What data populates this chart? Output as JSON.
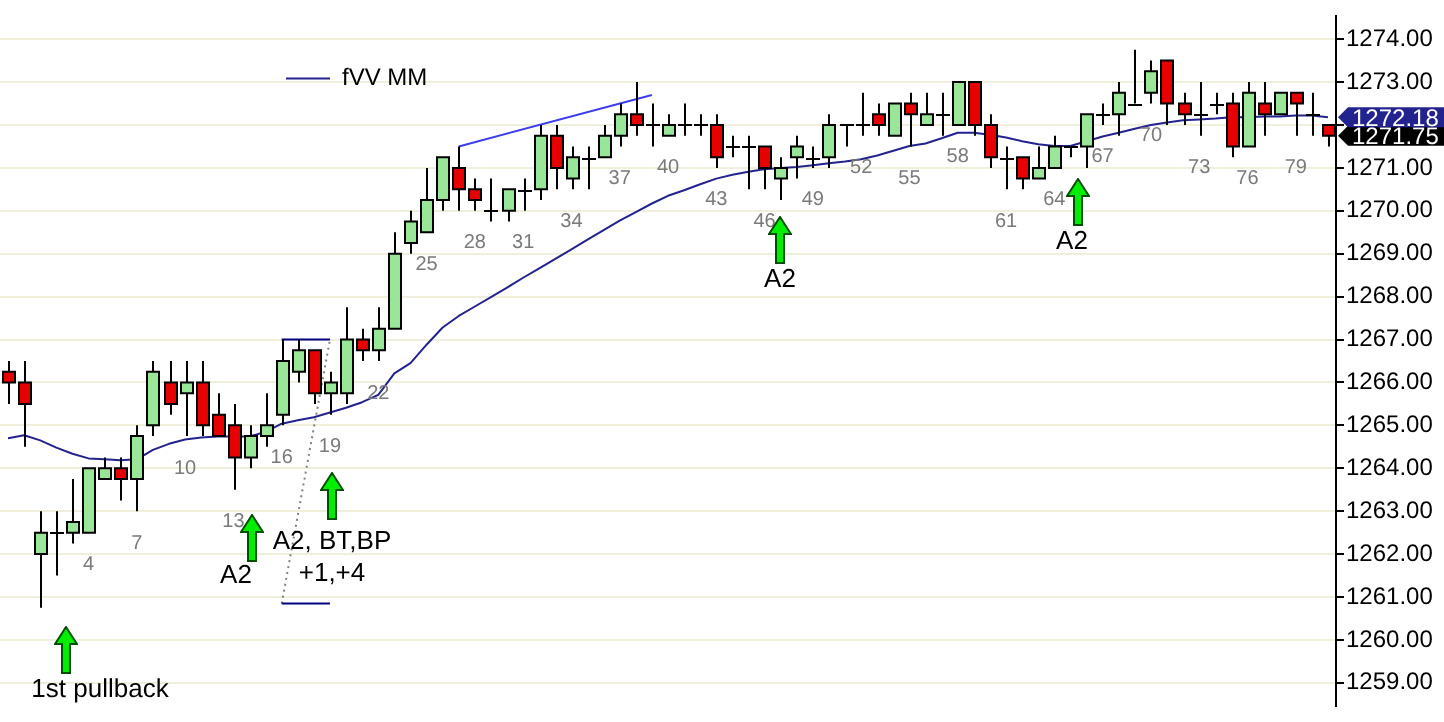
{
  "chart_data": {
    "type": "candlestick",
    "categories": [
      null,
      null,
      null,
      null,
      null,
      "4",
      null,
      null,
      "7",
      null,
      null,
      "10",
      null,
      null,
      "13",
      null,
      null,
      "16",
      null,
      null,
      "19",
      null,
      null,
      "22",
      null,
      null,
      "25",
      null,
      null,
      "28",
      null,
      null,
      "31",
      null,
      null,
      "34",
      null,
      null,
      "37",
      null,
      null,
      "40",
      null,
      null,
      "43",
      null,
      null,
      "46",
      null,
      null,
      "49",
      null,
      null,
      "52",
      null,
      null,
      "55",
      null,
      null,
      "58",
      null,
      null,
      "61",
      null,
      null,
      "64",
      null,
      null,
      "67",
      null,
      null,
      "70",
      null,
      null,
      "73",
      null,
      null,
      "76",
      null,
      null,
      "79",
      null,
      null
    ],
    "ohlc": [
      [
        1266.25,
        1266.5,
        1265.5,
        1266.0
      ],
      [
        1266.0,
        1266.5,
        1264.5,
        1265.5
      ],
      [
        1262.0,
        1263.0,
        1260.75,
        1262.5
      ],
      [
        1262.5,
        1263.0,
        1261.5,
        1262.5
      ],
      [
        1262.5,
        1263.75,
        1262.25,
        1262.75
      ],
      [
        1262.5,
        1264.0,
        1262.5,
        1264.0
      ],
      [
        1263.75,
        1264.25,
        1263.75,
        1264.0
      ],
      [
        1264.0,
        1264.25,
        1263.25,
        1263.75
      ],
      [
        1263.75,
        1265.0,
        1263.0,
        1264.75
      ],
      [
        1265.0,
        1266.5,
        1264.75,
        1266.25
      ],
      [
        1266.0,
        1266.5,
        1265.25,
        1265.5
      ],
      [
        1265.75,
        1266.5,
        1264.75,
        1266.0
      ],
      [
        1266.0,
        1266.5,
        1264.75,
        1265.0
      ],
      [
        1265.25,
        1265.75,
        1264.75,
        1264.75
      ],
      [
        1265.0,
        1265.5,
        1263.5,
        1264.25
      ],
      [
        1264.25,
        1265.0,
        1264.0,
        1264.75
      ],
      [
        1264.75,
        1265.75,
        1264.5,
        1265.0
      ],
      [
        1265.25,
        1267.0,
        1265.0,
        1266.5
      ],
      [
        1266.25,
        1267.0,
        1266.0,
        1266.75
      ],
      [
        1266.75,
        1266.75,
        1265.5,
        1265.75
      ],
      [
        1265.75,
        1266.25,
        1265.25,
        1266.0
      ],
      [
        1265.75,
        1267.75,
        1265.5,
        1267.0
      ],
      [
        1267.0,
        1267.25,
        1266.5,
        1266.75
      ],
      [
        1266.75,
        1267.75,
        1266.5,
        1267.25
      ],
      [
        1267.25,
        1269.5,
        1267.25,
        1269.0
      ],
      [
        1269.25,
        1270.0,
        1269.0,
        1269.75
      ],
      [
        1269.5,
        1271.0,
        1269.5,
        1270.25
      ],
      [
        1270.25,
        1271.25,
        1270.0,
        1271.25
      ],
      [
        1271.0,
        1271.5,
        1270.0,
        1270.5
      ],
      [
        1270.5,
        1270.75,
        1270.0,
        1270.25
      ],
      [
        1270.0,
        1270.75,
        1269.75,
        1270.0
      ],
      [
        1270.0,
        1270.5,
        1269.75,
        1270.5
      ],
      [
        1270.5,
        1270.75,
        1270.0,
        1270.5
      ],
      [
        1270.5,
        1272.0,
        1270.25,
        1271.75
      ],
      [
        1271.75,
        1272.0,
        1270.5,
        1271.0
      ],
      [
        1270.75,
        1271.5,
        1270.5,
        1271.25
      ],
      [
        1271.25,
        1271.5,
        1270.5,
        1271.25
      ],
      [
        1271.25,
        1272.0,
        1271.25,
        1271.75
      ],
      [
        1271.75,
        1272.5,
        1271.5,
        1272.25
      ],
      [
        1272.25,
        1273.0,
        1271.75,
        1272.0
      ],
      [
        1272.0,
        1272.5,
        1271.5,
        1272.0
      ],
      [
        1271.75,
        1272.25,
        1271.75,
        1272.0
      ],
      [
        1272.0,
        1272.5,
        1271.75,
        1272.0
      ],
      [
        1272.0,
        1272.25,
        1271.75,
        1272.0
      ],
      [
        1272.0,
        1272.25,
        1271.0,
        1271.25
      ],
      [
        1271.5,
        1271.75,
        1271.25,
        1271.5
      ],
      [
        1271.5,
        1271.75,
        1270.5,
        1271.5
      ],
      [
        1271.5,
        1271.5,
        1270.5,
        1271.0
      ],
      [
        1270.75,
        1271.25,
        1270.25,
        1271.0
      ],
      [
        1271.25,
        1271.75,
        1270.75,
        1271.5
      ],
      [
        1271.25,
        1271.5,
        1271.0,
        1271.25
      ],
      [
        1271.25,
        1272.25,
        1271.0,
        1272.0
      ],
      [
        1272.0,
        1272.0,
        1271.5,
        1272.0
      ],
      [
        1272.0,
        1272.75,
        1271.75,
        1272.0
      ],
      [
        1272.25,
        1272.5,
        1271.75,
        1272.0
      ],
      [
        1271.75,
        1272.5,
        1271.75,
        1272.5
      ],
      [
        1272.5,
        1272.75,
        1271.5,
        1272.25
      ],
      [
        1272.0,
        1272.75,
        1272.0,
        1272.25
      ],
      [
        1272.25,
        1272.75,
        1271.75,
        1272.25
      ],
      [
        1272.0,
        1273.0,
        1272.0,
        1273.0
      ],
      [
        1273.0,
        1273.0,
        1271.75,
        1272.0
      ],
      [
        1272.0,
        1272.25,
        1271.0,
        1271.25
      ],
      [
        1271.25,
        1271.5,
        1270.5,
        1271.25
      ],
      [
        1271.25,
        1271.25,
        1270.5,
        1270.75
      ],
      [
        1270.75,
        1271.5,
        1270.75,
        1271.0
      ],
      [
        1271.0,
        1271.75,
        1271.0,
        1271.5
      ],
      [
        1271.5,
        1271.5,
        1271.25,
        1271.5
      ],
      [
        1271.5,
        1272.25,
        1271.0,
        1272.25
      ],
      [
        1272.25,
        1272.5,
        1272.0,
        1272.25
      ],
      [
        1272.25,
        1273.0,
        1271.75,
        1272.75
      ],
      [
        1272.5,
        1273.75,
        1272.5,
        1272.5
      ],
      [
        1272.75,
        1273.5,
        1272.5,
        1273.25
      ],
      [
        1273.5,
        1273.5,
        1272.0,
        1272.5
      ],
      [
        1272.5,
        1272.75,
        1272.0,
        1272.25
      ],
      [
        1272.25,
        1273.0,
        1271.75,
        1272.25
      ],
      [
        1272.5,
        1272.75,
        1272.25,
        1272.5
      ],
      [
        1272.5,
        1272.75,
        1271.25,
        1271.5
      ],
      [
        1271.5,
        1273.0,
        1271.5,
        1272.75
      ],
      [
        1272.5,
        1273.0,
        1271.75,
        1272.25
      ],
      [
        1272.25,
        1272.75,
        1272.25,
        1272.75
      ],
      [
        1272.75,
        1272.75,
        1271.75,
        1272.5
      ],
      [
        1272.25,
        1272.75,
        1271.75,
        1272.25
      ],
      [
        1272.0,
        1272.0,
        1271.5,
        1271.75
      ]
    ],
    "colors": [
      "#e60000",
      "#e60000",
      "#99e699",
      "#000000",
      "#99e699",
      "#99e699",
      "#99e699",
      "#e60000",
      "#99e699",
      "#99e699",
      "#e60000",
      "#99e699",
      "#e60000",
      "#e60000",
      "#e60000",
      "#99e699",
      "#99e699",
      "#99e699",
      "#99e699",
      "#e60000",
      "#99e699",
      "#99e699",
      "#e60000",
      "#99e699",
      "#99e699",
      "#99e699",
      "#99e699",
      "#99e699",
      "#e60000",
      "#e60000",
      "#000000",
      "#99e699",
      "#000000",
      "#99e699",
      "#e60000",
      "#99e699",
      "#000000",
      "#99e699",
      "#99e699",
      "#e60000",
      "#000000",
      "#99e699",
      "#000000",
      "#000000",
      "#e60000",
      "#000000",
      "#000000",
      "#e60000",
      "#99e699",
      "#99e699",
      "#000000",
      "#99e699",
      "#000000",
      "#000000",
      "#e60000",
      "#99e699",
      "#e60000",
      "#99e699",
      "#000000",
      "#99e699",
      "#e60000",
      "#e60000",
      "#000000",
      "#e60000",
      "#99e699",
      "#99e699",
      "#000000",
      "#99e699",
      "#000000",
      "#99e699",
      "#000000",
      "#99e699",
      "#e60000",
      "#e60000",
      "#000000",
      "#000000",
      "#e60000",
      "#99e699",
      "#e60000",
      "#99e699",
      "#e60000",
      "#000000",
      "#e60000"
    ],
    "series": [
      {
        "type": "line",
        "name": "fVV MM",
        "color": "#23238f",
        "values": [
          1264.7,
          1264.77,
          1264.65,
          1264.48,
          1264.34,
          1264.23,
          1264.21,
          1264.19,
          1264.21,
          1264.43,
          1264.57,
          1264.67,
          1264.72,
          1264.74,
          1264.74,
          1264.74,
          1264.85,
          1265.04,
          1265.12,
          1265.19,
          1265.3,
          1265.41,
          1265.54,
          1265.71,
          1266.21,
          1266.45,
          1266.88,
          1267.28,
          1267.55,
          1267.77,
          1267.99,
          1268.21,
          1268.44,
          1268.66,
          1268.88,
          1269.1,
          1269.33,
          1269.55,
          1269.77,
          1269.97,
          1270.17,
          1270.35,
          1270.48,
          1270.62,
          1270.75,
          1270.84,
          1270.91,
          1270.97,
          1271.0,
          1271.02,
          1271.06,
          1271.11,
          1271.15,
          1271.2,
          1271.29,
          1271.4,
          1271.51,
          1271.57,
          1271.69,
          1271.82,
          1271.82,
          1271.77,
          1271.71,
          1271.62,
          1271.55,
          1271.51,
          1271.51,
          1271.62,
          1271.73,
          1271.82,
          1271.91,
          1272.0,
          1272.06,
          1272.11,
          1272.13,
          1272.15,
          1272.18,
          1272.18,
          1272.2,
          1272.2,
          1272.22,
          1272.22,
          1272.18
        ],
        "value_labels": [
          null,
          null,
          null,
          null,
          null,
          null,
          null,
          null,
          null,
          null,
          null,
          null,
          null,
          null,
          null,
          null,
          null,
          null,
          null,
          null,
          null,
          null,
          null,
          null,
          null,
          null,
          null,
          null,
          null,
          null,
          null,
          null,
          null,
          null,
          null,
          null,
          null,
          null,
          null,
          null,
          null,
          null,
          null,
          null,
          null,
          null,
          null,
          null,
          null,
          null,
          null,
          null,
          null,
          null,
          null,
          null,
          null,
          null,
          null,
          null,
          null,
          null,
          null,
          null,
          null,
          null,
          null,
          null,
          null,
          null,
          null,
          null,
          null,
          null,
          null,
          null,
          null,
          null,
          null,
          null,
          null,
          null,
          "1272.18"
        ]
      },
      {
        "type": "line",
        "color": "#3c3cf0",
        "values": [
          null,
          null,
          null,
          null,
          null,
          null,
          null,
          null,
          null,
          null,
          null,
          null,
          null,
          null,
          null,
          null,
          null,
          null,
          null,
          null,
          null,
          null,
          null,
          null,
          null,
          null,
          null,
          null,
          1271.5,
          null,
          null,
          null,
          null,
          null,
          null,
          null,
          null,
          null,
          null,
          null,
          1272.7,
          null,
          null,
          null,
          null,
          null,
          null,
          null,
          null,
          null,
          null,
          null,
          null,
          null,
          null,
          null,
          null,
          null,
          null,
          null,
          null,
          null,
          null,
          null,
          null,
          null,
          null,
          null,
          null,
          null,
          null,
          null,
          null,
          null,
          null,
          null,
          null,
          null,
          null,
          null,
          null,
          null,
          null
        ]
      },
      {
        "type": "line",
        "color": "#000080",
        "values": [
          null,
          null,
          null,
          null,
          null,
          null,
          null,
          null,
          null,
          null,
          null,
          null,
          null,
          null,
          null,
          null,
          null,
          1267.0,
          1267.0,
          1267.0,
          1267.0,
          null,
          null,
          null,
          null,
          null,
          null,
          null,
          null,
          null,
          null,
          null,
          null,
          null,
          null,
          null,
          null,
          null,
          null,
          null,
          null,
          null,
          null,
          null,
          null,
          null,
          null,
          null,
          null,
          null,
          null,
          null,
          null,
          null,
          null,
          null,
          null,
          null,
          null,
          null,
          null,
          null,
          null,
          null,
          null,
          null,
          null,
          null,
          null,
          null,
          null,
          null,
          null,
          null,
          null,
          null,
          null,
          null,
          null,
          null,
          null,
          null,
          null
        ]
      },
      {
        "type": "line",
        "color": "#000080",
        "values": [
          null,
          null,
          null,
          null,
          null,
          null,
          null,
          null,
          null,
          null,
          null,
          null,
          null,
          null,
          null,
          null,
          null,
          1260.85,
          1260.85,
          1260.85,
          1260.85,
          null,
          null,
          null,
          null,
          null,
          null,
          null,
          null,
          null,
          null,
          null,
          null,
          null,
          null,
          null,
          null,
          null,
          null,
          null,
          null,
          null,
          null,
          null,
          null,
          null,
          null,
          null,
          null,
          null,
          null,
          null,
          null,
          null,
          null,
          null,
          null,
          null,
          null,
          null,
          null,
          null,
          null,
          null,
          null,
          null,
          null,
          null,
          null,
          null,
          null,
          null,
          null,
          null,
          null,
          null,
          null,
          null,
          null,
          null,
          null,
          null,
          null
        ]
      },
      {
        "type": "line",
        "color": "#808080",
        "line_style": "dotted",
        "values": [
          null,
          null,
          null,
          null,
          null,
          null,
          null,
          null,
          null,
          null,
          null,
          null,
          null,
          null,
          null,
          null,
          null,
          1260.85,
          null,
          null,
          1267.0,
          null,
          null,
          null,
          null,
          null,
          null,
          null,
          null,
          null,
          null,
          null,
          null,
          null,
          null,
          null,
          null,
          null,
          null,
          null,
          null,
          null,
          null,
          null,
          null,
          null,
          null,
          null,
          null,
          null,
          null,
          null,
          null,
          null,
          null,
          null,
          null,
          null,
          null,
          null,
          null,
          null,
          null,
          null,
          null,
          null,
          null,
          null,
          null,
          null,
          null,
          null,
          null,
          null,
          null,
          null,
          null,
          null,
          null,
          null,
          null,
          null,
          null
        ]
      }
    ],
    "ylim": [
      1258.47,
      1274.53
    ],
    "yticks": [
      {
        "value": 1259,
        "label": "1259.00"
      },
      {
        "value": 1260,
        "label": "1260.00"
      },
      {
        "value": 1261,
        "label": "1261.00"
      },
      {
        "value": 1262,
        "label": "1262.00"
      },
      {
        "value": 1263,
        "label": "1263.00"
      },
      {
        "value": 1264,
        "label": "1264.00"
      },
      {
        "value": 1265,
        "label": "1265.00"
      },
      {
        "value": 1266,
        "label": "1266.00"
      },
      {
        "value": 1267,
        "label": "1267.00"
      },
      {
        "value": 1268,
        "label": "1268.00"
      },
      {
        "value": 1269,
        "label": "1269.00"
      },
      {
        "value": 1270,
        "label": "1270.00"
      },
      {
        "value": 1271,
        "label": "1271.00"
      },
      {
        "value": 1272,
        "label": null
      },
      {
        "value": 1273,
        "label": "1273.00"
      },
      {
        "value": 1274,
        "label": "1274.00"
      }
    ],
    "annotations": [
      "1st pullback",
      "A2",
      "A2, BT,BP\n+1,+4",
      "A2",
      "A2",
      "1271.75"
    ],
    "grid": "y",
    "legend": "top left",
    "tick_labels": "y"
  }
}
